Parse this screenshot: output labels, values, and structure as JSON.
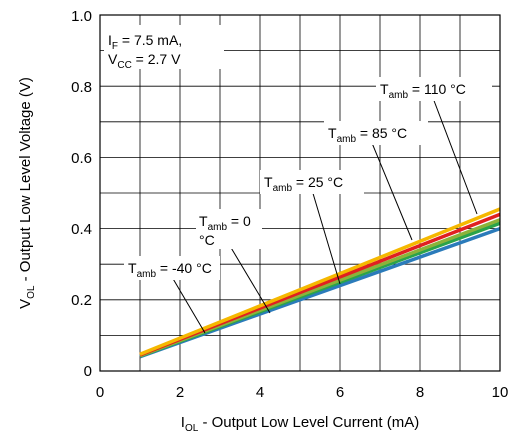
{
  "chart_data": {
    "type": "line",
    "xlabel": {
      "main": "I",
      "sub": "OL",
      "rest": " - Output Low Level Current (mA)"
    },
    "ylabel": {
      "main": "V",
      "sub": "OL",
      "rest": " - Output Low Level Voltage (V)"
    },
    "xlim": [
      0,
      10
    ],
    "ylim": [
      0,
      1.0
    ],
    "x_ticks": [
      "0",
      "2",
      "4",
      "6",
      "8",
      "10"
    ],
    "y_ticks": [
      "0",
      "0.2",
      "0.4",
      "0.6",
      "0.8",
      "1.0"
    ],
    "grid": true,
    "conditions": {
      "line1": {
        "main": "I",
        "sub": "F",
        "rest": " = 7.5 mA,"
      },
      "line2": {
        "main": "V",
        "sub": "CC",
        "rest": " = 2.7 V"
      }
    },
    "series": [
      {
        "name": "Tamb = -40 °C",
        "color": "#2b7bba",
        "x": [
          1,
          10
        ],
        "y": [
          0.04,
          0.4
        ]
      },
      {
        "name": "Tamb = 0 °C",
        "color": "#2aa34a",
        "x": [
          1,
          10
        ],
        "y": [
          0.042,
          0.415
        ]
      },
      {
        "name": "Tamb = 25 °C",
        "color": "#8cb33a",
        "x": [
          1,
          10
        ],
        "y": [
          0.043,
          0.425
        ]
      },
      {
        "name": "Tamb = 85 °C",
        "color": "#e02020",
        "x": [
          1,
          10
        ],
        "y": [
          0.045,
          0.44
        ]
      },
      {
        "name": "Tamb = 110 °C",
        "color": "#f5b800",
        "x": [
          1,
          10
        ],
        "y": [
          0.047,
          0.455
        ]
      }
    ],
    "annotations": [
      {
        "main": "T",
        "sub": "amb",
        "rest": " = -40 °C"
      },
      {
        "main": "T",
        "sub": "amb",
        "rest": " = 0",
        "line2": "°C"
      },
      {
        "main": "T",
        "sub": "amb",
        "rest": " = 25 °C"
      },
      {
        "main": "T",
        "sub": "amb",
        "rest": " = 85 °C"
      },
      {
        "main": "T",
        "sub": "amb",
        "rest": " = 110 °C"
      }
    ]
  }
}
